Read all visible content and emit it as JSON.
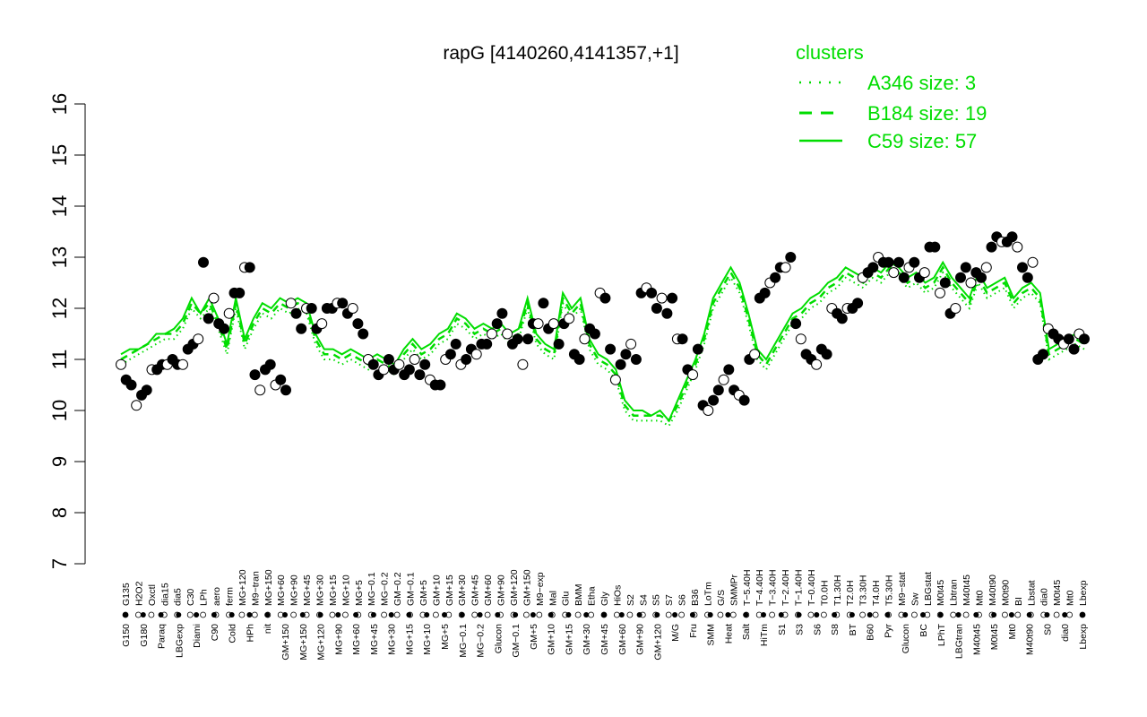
{
  "chart_data": {
    "type": "line",
    "title": "rapG [4140260,4141357,+1]",
    "xlabel": "",
    "ylabel": "",
    "ylim": [
      7,
      16
    ],
    "yticks": [
      7,
      8,
      9,
      10,
      11,
      12,
      13,
      14,
      15,
      16
    ],
    "grid": false,
    "legend": {
      "title": "clusters",
      "placement": "top-right",
      "color": "#00dd00",
      "entries": [
        {
          "label": "A346 size: 3",
          "style": "dotted"
        },
        {
          "label": "B184 size: 19",
          "style": "dashed"
        },
        {
          "label": "C59 size: 57",
          "style": "solid"
        }
      ]
    },
    "tick_labels_top": [
      "G135",
      "H2O2",
      "Oxctl",
      "dia15",
      "dia5",
      "C30",
      "LPh",
      "aero",
      "ferm",
      "MG+120",
      "M9−tran",
      "MG+150",
      "MG+60",
      "MG+90",
      "MG+45",
      "MG+30",
      "MG+15",
      "MG+10",
      "MG+5",
      "MG−0.1",
      "MG−0.2",
      "GM−0.2",
      "GM−0.1",
      "GM+5",
      "GM+10",
      "GM+15",
      "GM+30",
      "GM+45",
      "GM+60",
      "GM+90",
      "GM+120",
      "GM+150",
      "M9−exp",
      "Mal",
      "Glu",
      "BMM",
      "Etha",
      "Gly",
      "HiOs",
      "S2",
      "S4",
      "S5",
      "S7",
      "S6",
      "B36",
      "LoTm",
      "G/S",
      "SMMPr",
      "T−5.40H",
      "T−4.40H",
      "T−3.40H",
      "T−2.40H",
      "T−1.40H",
      "T−0.40H",
      "T0.0H",
      "T1.30H",
      "T2.0H",
      "T3.30H",
      "T4.0H",
      "T5.30H",
      "M9−stat",
      "Sw",
      "LBGstat",
      "M0t45",
      "Lbtran",
      "M40t45",
      "Mt0",
      "M40t90",
      "M0t90",
      "BI",
      "Lbstat",
      "dia0",
      "M0t45",
      "Mt0",
      "Lbexp"
    ],
    "tick_labels_bottom": [
      "G150",
      "G180",
      "Paraq",
      "LBGexp",
      "Diami",
      "C90",
      "Cold",
      "HPh",
      "nit",
      "GM+150",
      "MG+150",
      "MG+120",
      "MG+90",
      "MG+60",
      "MG+45",
      "MG+30",
      "MG+15",
      "MG+10",
      "MG+5",
      "MG−0.1",
      "MG−0.2",
      "Glucon",
      "GM−0.1",
      "GM+5",
      "GM+10",
      "GM+15",
      "GM+30",
      "GM+45",
      "GM+60",
      "GM+90",
      "GM+120",
      "M/G",
      "Fru",
      "SMM",
      "Heat",
      "Salt",
      "HiTm",
      "S1",
      "S3",
      "S6",
      "S8",
      "BT",
      "B60",
      "Pyr",
      "Glucon",
      "BC",
      "LPhT",
      "LBGtran",
      "M40t45",
      "M0t45",
      "Mt0",
      "M40t90",
      "S0",
      "dia0",
      "Lbexp"
    ],
    "series": [
      {
        "name": "C59 size: 57",
        "style": "solid",
        "color": "#00dd00",
        "values": [
          11.1,
          11.2,
          11.2,
          11.3,
          11.5,
          11.5,
          11.6,
          11.8,
          12.2,
          11.9,
          12.2,
          11.8,
          11.3,
          12.2,
          11.4,
          11.8,
          12.1,
          12.0,
          12.2,
          12.1,
          12.2,
          12.1,
          11.5,
          11.2,
          11.2,
          11.1,
          11.2,
          11.1,
          11.0,
          11.1,
          11.0,
          10.9,
          11.2,
          11.4,
          11.2,
          11.3,
          11.5,
          11.6,
          11.9,
          11.8,
          11.6,
          11.7,
          11.6,
          11.7,
          11.5,
          11.6,
          12.2,
          11.5,
          11.3,
          11.2,
          12.3,
          12.0,
          12.2,
          11.4,
          11.1,
          11.0,
          10.8,
          10.2,
          10.0,
          10.0,
          9.9,
          10.0,
          9.8,
          10.2,
          10.6,
          11.0,
          11.5,
          12.2,
          12.5,
          12.8,
          12.5,
          11.9,
          11.2,
          11.0,
          11.3,
          11.6,
          11.9,
          12.0,
          12.2,
          12.3,
          12.5,
          12.6,
          12.8,
          12.7,
          12.6,
          12.8,
          12.7,
          12.9,
          12.8,
          12.6,
          12.7,
          12.5,
          12.6,
          12.9,
          12.6,
          12.4,
          12.2,
          12.7,
          12.4,
          12.5,
          12.6,
          12.2,
          12.4,
          12.5,
          12.3,
          11.2,
          11.3,
          11.4,
          11.5,
          11.4
        ]
      },
      {
        "name": "B184 size: 19",
        "style": "dashed",
        "color": "#00dd00",
        "values": [
          11.0,
          11.1,
          11.2,
          11.3,
          11.4,
          11.5,
          11.5,
          11.7,
          12.1,
          11.9,
          12.1,
          11.7,
          11.2,
          12.1,
          11.3,
          11.7,
          12.0,
          11.9,
          12.1,
          12.0,
          12.1,
          12.0,
          11.4,
          11.1,
          11.1,
          11.0,
          11.1,
          11.0,
          10.9,
          11.0,
          10.9,
          10.8,
          11.1,
          11.3,
          11.1,
          11.2,
          11.4,
          11.5,
          11.8,
          11.7,
          11.5,
          11.6,
          11.5,
          11.6,
          11.4,
          11.5,
          12.1,
          11.4,
          11.2,
          11.1,
          12.2,
          11.9,
          12.1,
          11.3,
          11.0,
          10.9,
          10.7,
          10.1,
          9.9,
          9.9,
          9.9,
          9.9,
          9.8,
          10.1,
          10.5,
          10.9,
          11.4,
          12.1,
          12.4,
          12.7,
          12.4,
          11.8,
          11.1,
          10.9,
          11.2,
          11.5,
          11.8,
          11.9,
          12.1,
          12.2,
          12.4,
          12.5,
          12.7,
          12.6,
          12.5,
          12.7,
          12.6,
          12.8,
          12.7,
          12.5,
          12.6,
          12.4,
          12.5,
          12.8,
          12.5,
          12.3,
          12.1,
          12.6,
          12.3,
          12.4,
          12.5,
          12.1,
          12.3,
          12.4,
          12.2,
          11.1,
          11.2,
          11.3,
          11.4,
          11.3
        ]
      },
      {
        "name": "A346 size: 3",
        "style": "dotted",
        "color": "#00dd00",
        "values": [
          10.9,
          11.0,
          11.1,
          11.2,
          11.3,
          11.4,
          11.4,
          11.6,
          12.0,
          11.8,
          12.0,
          11.6,
          11.1,
          12.0,
          11.2,
          11.6,
          11.9,
          11.8,
          12.0,
          11.9,
          12.0,
          11.9,
          11.3,
          11.0,
          11.0,
          10.9,
          11.0,
          10.9,
          10.8,
          10.9,
          10.8,
          10.7,
          11.0,
          11.2,
          11.0,
          11.1,
          11.3,
          11.4,
          11.7,
          11.6,
          11.4,
          11.5,
          11.4,
          11.5,
          11.3,
          11.4,
          12.0,
          11.3,
          11.1,
          11.0,
          12.1,
          11.8,
          12.0,
          11.2,
          10.9,
          10.8,
          10.6,
          10.0,
          9.8,
          9.8,
          9.8,
          9.8,
          9.7,
          10.0,
          10.4,
          10.8,
          11.3,
          12.0,
          12.3,
          12.6,
          12.3,
          11.7,
          11.0,
          10.8,
          11.1,
          11.4,
          11.7,
          11.8,
          12.0,
          12.1,
          12.3,
          12.4,
          12.6,
          12.5,
          12.4,
          12.6,
          12.5,
          12.7,
          12.6,
          12.4,
          12.5,
          12.3,
          12.4,
          12.7,
          12.4,
          12.2,
          12.0,
          12.5,
          12.2,
          12.3,
          12.4,
          12.0,
          12.2,
          12.3,
          12.1,
          11.0,
          11.1,
          11.2,
          11.3,
          11.2
        ]
      },
      {
        "name": "",
        "style": "points",
        "color": "#000000",
        "values": [
          10.9,
          10.6,
          10.5,
          10.1,
          10.3,
          10.4,
          10.8,
          10.8,
          10.9,
          10.9,
          11.0,
          10.9,
          10.9,
          11.2,
          11.3,
          11.4,
          12.9,
          11.8,
          12.2,
          11.7,
          11.6,
          11.9,
          12.3,
          12.3,
          12.8,
          12.8,
          10.7,
          10.4,
          10.8,
          10.9,
          10.5,
          10.6,
          10.4,
          12.1,
          11.9,
          11.6,
          12.0,
          12.0,
          11.6,
          11.7,
          12.0,
          12.0,
          12.1,
          12.1,
          11.9,
          12.0,
          11.7,
          11.5,
          11.0,
          10.9,
          10.7,
          10.8,
          11.0,
          10.8,
          10.9,
          10.7,
          10.8,
          11.0,
          10.7,
          10.9,
          10.6,
          10.5,
          10.5,
          11.0,
          11.1,
          11.3,
          10.9,
          11.0,
          11.2,
          11.1,
          11.3,
          11.3,
          11.5,
          11.7,
          11.9,
          11.5,
          11.3,
          11.4,
          10.9,
          11.4,
          11.7,
          11.7,
          12.1,
          11.6,
          11.7,
          11.3,
          11.7,
          11.8,
          11.1,
          11.0,
          11.4,
          11.6,
          11.5,
          12.3,
          12.2,
          11.2,
          10.6,
          10.9,
          11.1,
          11.3,
          11.0,
          12.3,
          12.4,
          12.3,
          12.0,
          12.2,
          11.9,
          12.2,
          11.4,
          11.4,
          10.8,
          10.7,
          11.2,
          10.1,
          10.0,
          10.2,
          10.4,
          10.6,
          10.8,
          10.4,
          10.3,
          10.2,
          11.0,
          11.1,
          12.2,
          12.3,
          12.5,
          12.6,
          12.8,
          12.8,
          13.0,
          11.7,
          11.4,
          11.1,
          11.0,
          10.9,
          11.2,
          11.1,
          12.0,
          11.9,
          11.8,
          12.0,
          12.0,
          12.1,
          12.6,
          12.7,
          12.8,
          13.0,
          12.9,
          12.9,
          12.7,
          12.9,
          12.6,
          12.8,
          12.9,
          12.6,
          12.7,
          13.2,
          13.2,
          12.3,
          12.5,
          11.9,
          12.0,
          12.6,
          12.8,
          12.5,
          12.7,
          12.6,
          12.8,
          13.2,
          13.4,
          13.3,
          13.3,
          13.4,
          13.2,
          12.8,
          12.6,
          12.9,
          11.0,
          11.1,
          11.6,
          11.5,
          11.4,
          11.3,
          11.4,
          11.2,
          11.5,
          11.4
        ]
      }
    ]
  }
}
